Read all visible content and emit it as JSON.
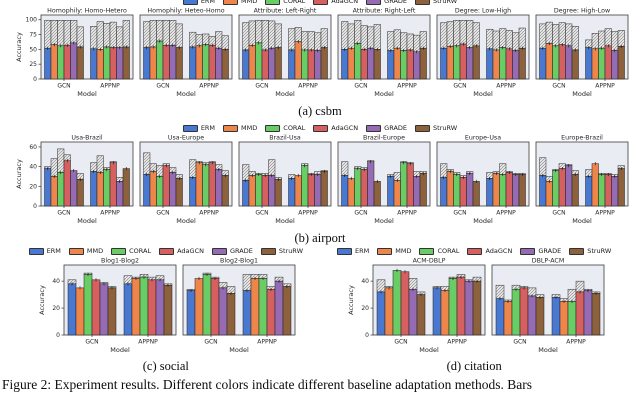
{
  "figure_caption": "Figure 2: Experiment results. Different colors indicate different baseline adaptation methods. Bars",
  "chart_data": {
    "type": "bar",
    "methods": [
      "ERM",
      "MMD",
      "CORAL",
      "AdaGCN",
      "GRADE",
      "StruRW"
    ],
    "palette": {
      "ERM": "#4878D0",
      "MMD": "#EE854A",
      "CORAL": "#6ACC64",
      "AdaGCN": "#D65F5F",
      "GRADE": "#956CB4",
      "StruRW": "#8C613C"
    },
    "bar_style_note": "each bar has a solid (OOD) part and a hatched top extending to total (IID)",
    "hatch_bg": "#f0f0f0",
    "hatch_line": "#8a8a8a",
    "plot_bg": "#eaecf4",
    "panels": [
      {
        "id": "a",
        "caption": "(a) csbm",
        "ylabel": "Accuracy",
        "xlabel": "Model",
        "groups": [
          "GCN",
          "APPNP"
        ],
        "ylim": [
          0,
          108
        ],
        "yticks": [
          0,
          25,
          50,
          75,
          100
        ],
        "subplots": [
          {
            "title": "Homophily: Homo-Hetero",
            "bars": {
              "GCN": {
                "solid": [
                  52,
                  58,
                  56,
                  57,
                  61,
                  54
                ],
                "total": [
                  99,
                  99,
                  99,
                  99,
                  99,
                  88
                ]
              },
              "APPNP": {
                "solid": [
                  51,
                  50,
                  54,
                  53,
                  53,
                  54
                ],
                "total": [
                  89,
                  97,
                  94,
                  96,
                  88,
                  99
                ]
              }
            }
          },
          {
            "title": "Homophily: Heteo-Homo",
            "bars": {
              "GCN": {
                "solid": [
                  53,
                  54,
                  64,
                  57,
                  57,
                  53
                ],
                "total": [
                  97,
                  99,
                  99,
                  99,
                  99,
                  93
                ]
              },
              "APPNP": {
                "solid": [
                  54,
                  56,
                  58,
                  57,
                  52,
                  50
                ],
                "total": [
                  79,
                  75,
                  76,
                  72,
                  80,
                  73
                ]
              }
            }
          },
          {
            "title": "Attribute: Left-Right",
            "bars": {
              "GCN": {
                "solid": [
                  49,
                  57,
                  61,
                  49,
                  52,
                  53
                ],
                "total": [
                  95,
                  98,
                  99,
                  99,
                  98,
                  93
                ]
              },
              "APPNP": {
                "solid": [
                  49,
                  63,
                  49,
                  49,
                  48,
                  53
                ],
                "total": [
                  85,
                  87,
                  80,
                  80,
                  78,
                  85
                ]
              }
            }
          },
          {
            "title": "Attribute: Right-Left",
            "bars": {
              "GCN": {
                "solid": [
                  50,
                  52,
                  60,
                  50,
                  52,
                  50
                ],
                "total": [
                  97,
                  93,
                  99,
                  90,
                  88,
                  92
                ]
              },
              "APPNP": {
                "solid": [
                  48,
                  52,
                  48,
                  49,
                  46,
                  52
                ],
                "total": [
                  80,
                  83,
                  78,
                  76,
                  74,
                  80
                ]
              }
            }
          },
          {
            "title": "Degree: Low-High",
            "bars": {
              "GCN": {
                "solid": [
                  52,
                  55,
                  56,
                  59,
                  53,
                  56
                ],
                "total": [
                  95,
                  97,
                  99,
                  99,
                  99,
                  95
                ]
              },
              "APPNP": {
                "solid": [
                  51,
                  49,
                  53,
                  51,
                  48,
                  52
                ],
                "total": [
                  84,
                  81,
                  85,
                  82,
                  78,
                  86
                ]
              }
            }
          },
          {
            "title": "Degree: High-Low",
            "bars": {
              "GCN": {
                "solid": [
                  52,
                  60,
                  56,
                  58,
                  56,
                  49
                ],
                "total": [
                  93,
                  96,
                  92,
                  95,
                  93,
                  89
                ]
              },
              "APPNP": {
                "solid": [
                  53,
                  51,
                  52,
                  56,
                  48,
                  55
                ],
                "total": [
                  66,
                  77,
                  81,
                  85,
                  80,
                  82
                ]
              }
            }
          }
        ]
      },
      {
        "id": "b",
        "caption": "(b) airport",
        "ylabel": "Accuracy",
        "xlabel": "Model",
        "groups": [
          "GCN",
          "APPNP"
        ],
        "ylim": [
          0,
          65
        ],
        "yticks": [
          0,
          20,
          40,
          60
        ],
        "subplots": [
          {
            "title": "Usa-Brazil",
            "bars": {
              "GCN": {
                "solid": [
                  38,
                  30,
                  34,
                  46,
                  36,
                  27
                ],
                "total": [
                  40,
                  48,
                  58,
                  52,
                  36,
                  33
                ]
              },
              "APPNP": {
                "solid": [
                  35,
                  34,
                  37,
                  44,
                  25,
                  38
                ],
                "total": [
                  44,
                  51,
                  39,
                  45,
                  29,
                  38
                ]
              }
            }
          },
          {
            "title": "Usa-Europe",
            "bars": {
              "GCN": {
                "solid": [
                  32,
                  35,
                  30,
                  41,
                  34,
                  28
                ],
                "total": [
                  54,
                  43,
                  41,
                  43,
                  39,
                  32
                ]
              },
              "APPNP": {
                "solid": [
                  29,
                  44,
                  42,
                  44,
                  37,
                  31
                ],
                "total": [
                  47,
                  45,
                  44,
                  45,
                  42,
                  36
                ]
              }
            }
          },
          {
            "title": "Brazil-Usa",
            "bars": {
              "GCN": {
                "solid": [
                  26,
                  31,
                  32,
                  31,
                  31,
                  27
                ],
                "total": [
                  42,
                  35,
                  33,
                  33,
                  47,
                  29
                ]
              },
              "APPNP": {
                "solid": [
                  28,
                  31,
                  41,
                  32,
                  32,
                  35
                ],
                "total": [
                  32,
                  31,
                  43,
                  33,
                  35,
                  36
                ]
              }
            }
          },
          {
            "title": "Brazil-Europe",
            "bars": {
              "GCN": {
                "solid": [
                  31,
                  28,
                  38,
                  37,
                  45,
                  25
                ],
                "total": [
                  45,
                  28,
                  40,
                  39,
                  46,
                  25
                ]
              },
              "APPNP": {
                "solid": [
                  30,
                  26,
                  44,
                  43,
                  30,
                  33
                ],
                "total": [
                  32,
                  34,
                  45,
                  44,
                  35,
                  35
                ]
              }
            }
          },
          {
            "title": "Europe-Usa",
            "bars": {
              "GCN": {
                "solid": [
                  29,
                  35,
                  32,
                  29,
                  33,
                  25
                ],
                "total": [
                  43,
                  37,
                  34,
                  31,
                  35,
                  25
                ]
              },
              "APPNP": {
                "solid": [
                  28,
                  33,
                  32,
                  34,
                  32,
                  32
                ],
                "total": [
                  34,
                  35,
                  43,
                  35,
                  33,
                  33
                ]
              }
            }
          },
          {
            "title": "Europe-Brazil",
            "bars": {
              "GCN": {
                "solid": [
                  31,
                  25,
                  36,
                  38,
                  41,
                  32
                ],
                "total": [
                  49,
                  30,
                  37,
                  43,
                  42,
                  36
                ]
              },
              "APPNP": {
                "solid": [
                  30,
                  43,
                  32,
                  32,
                  30,
                  38
                ],
                "total": [
                  37,
                  43,
                  33,
                  33,
                  32,
                  41
                ]
              }
            }
          }
        ]
      },
      {
        "id": "c",
        "caption": "(c) social",
        "ylabel": "Accuracy",
        "xlabel": "Model",
        "groups": [
          "GCN",
          "APPNP"
        ],
        "ylim": [
          0,
          52
        ],
        "yticks": [
          0,
          20,
          40
        ],
        "subplots": [
          {
            "title": "Blog1-Blog2",
            "bars": {
              "GCN": {
                "solid": [
                  38,
                  35,
                  45,
                  41,
                  38,
                  35
                ],
                "total": [
                  41,
                  35,
                  46,
                  41,
                  39,
                  36
                ]
              },
              "APPNP": {
                "solid": [
                  38,
                  42,
                  43,
                  41,
                  41,
                  37
                ],
                "total": [
                  44,
                  43,
                  45,
                  43,
                  44,
                  38
                ]
              }
            }
          },
          {
            "title": "Blog2-Blog1",
            "bars": {
              "GCN": {
                "solid": [
                  33,
                  42,
                  45,
                  42,
                  35,
                  31
                ],
                "total": [
                  34,
                  42,
                  46,
                  43,
                  39,
                  36
                ]
              },
              "APPNP": {
                "solid": [
                  33,
                  42,
                  42,
                  34,
                  40,
                  36
                ],
                "total": [
                  45,
                  45,
                  45,
                  36,
                  43,
                  38
                ]
              }
            }
          }
        ]
      },
      {
        "id": "d",
        "caption": "(d) citation",
        "ylabel": "Accuracy",
        "xlabel": "Model",
        "groups": [
          "GCN",
          "APPNP"
        ],
        "ylim": [
          0,
          52
        ],
        "yticks": [
          0,
          20,
          40
        ],
        "subplots": [
          {
            "title": "ACM-DBLP",
            "bars": {
              "GCN": {
                "solid": [
                  32,
                  35,
                  48,
                  47,
                  34,
                  30
                ],
                "total": [
                  41,
                  36,
                  48,
                  47,
                  42,
                  32
                ]
              },
              "APPNP": {
                "solid": [
                  35,
                  33,
                  42,
                  43,
                  40,
                  40
                ],
                "total": [
                  36,
                  36,
                  43,
                  45,
                  41,
                  43
                ]
              }
            }
          },
          {
            "title": "DBLP-ACM",
            "bars": {
              "GCN": {
                "solid": [
                  27,
                  25,
                  34,
                  35,
                  29,
                  28
                ],
                "total": [
                  37,
                  26,
                  37,
                  36,
                  35,
                  30
                ]
              },
              "APPNP": {
                "solid": [
                  28,
                  25,
                  25,
                  32,
                  33,
                  31
                ],
                "total": [
                  30,
                  27,
                  34,
                  40,
                  34,
                  32
                ]
              }
            }
          }
        ]
      }
    ]
  }
}
